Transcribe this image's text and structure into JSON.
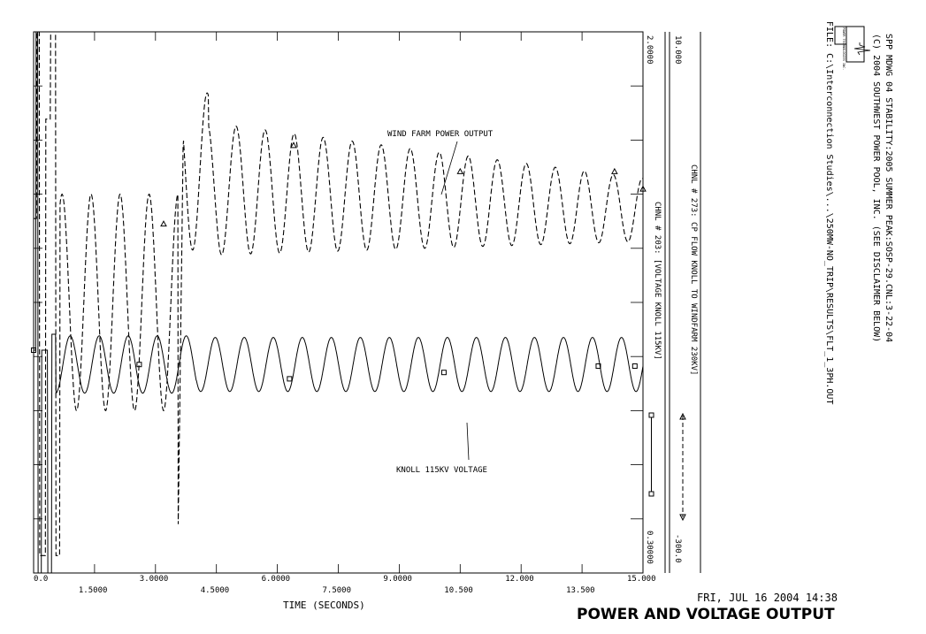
{
  "chart_data": {
    "type": "line",
    "title": "POWER AND VOLTAGE OUTPUT",
    "date_line": "FRI, JUL 16 2004   14:38",
    "header_lines": [
      "SPP MDWG 04 STABILITY:2005 SUMMER PEAK:SOSP-29.CNL:3-22-04",
      "(C) 2004 SOUTHWEST POWER POOL, INC. (SEE DISCLAIMER BELOW)",
      "FILE: C:\\Interconnection Studies\\...\\250MW-NO_TRIP\\RESULTS\\FLT_1_3PH.OUT"
    ],
    "logo_text": "POWER TECHNOLOGIES INC.",
    "xlabel": "TIME  (SECONDS)",
    "xlim": [
      0,
      15
    ],
    "x_ticks": [
      "0.0",
      "1.5000",
      "3.0000",
      "4.5000",
      "6.0000",
      "7.5000",
      "9.0000",
      "10.500",
      "12.000",
      "13.500",
      "15.000"
    ],
    "annotations": [
      "WIND FARM POWER OUTPUT",
      "KNOLL 115KV VOLTAGE"
    ],
    "series": [
      {
        "name": "CHNL # 273: CP FLOW KNOLL TO WINDFARM 230KV]",
        "axis_top": "10.000",
        "axis_bottom": "-300.0",
        "ylim": [
          -300,
          10
        ],
        "style": "dashed",
        "description_points": {
          "x": [
            0.0,
            0.2,
            0.45,
            0.6,
            1.0,
            2.0,
            3.0,
            3.5,
            3.9,
            4.2,
            5.0,
            6.0,
            7.5,
            9.0,
            10.5,
            12.0,
            13.5,
            15.0
          ],
          "y": [
            -97,
            10,
            -290,
            10,
            -145,
            -145,
            -145,
            -290,
            -55,
            -55,
            -68,
            -80,
            -90,
            -100,
            -105,
            -108,
            -110,
            -112
          ]
        },
        "oscillation_freq_hz": 1.4
      },
      {
        "name": "CHNL # 203: [VOLTAGE KNOLL 115KV]",
        "axis_top": "2.0000",
        "axis_bottom": "0.30000",
        "ylim": [
          0.3,
          2.0
        ],
        "style": "solid",
        "description_points": {
          "x": [
            0.0,
            0.15,
            0.3,
            0.5,
            0.6,
            1.0,
            3.0,
            3.5,
            4.0,
            6.0,
            9.0,
            12.0,
            15.0
          ],
          "y": [
            1.0,
            2.0,
            0.3,
            1.0,
            0.3,
            1.0,
            1.0,
            1.0,
            1.0,
            0.96,
            0.96,
            0.96,
            0.96
          ]
        },
        "oscillation_freq_hz": 1.4
      }
    ]
  }
}
